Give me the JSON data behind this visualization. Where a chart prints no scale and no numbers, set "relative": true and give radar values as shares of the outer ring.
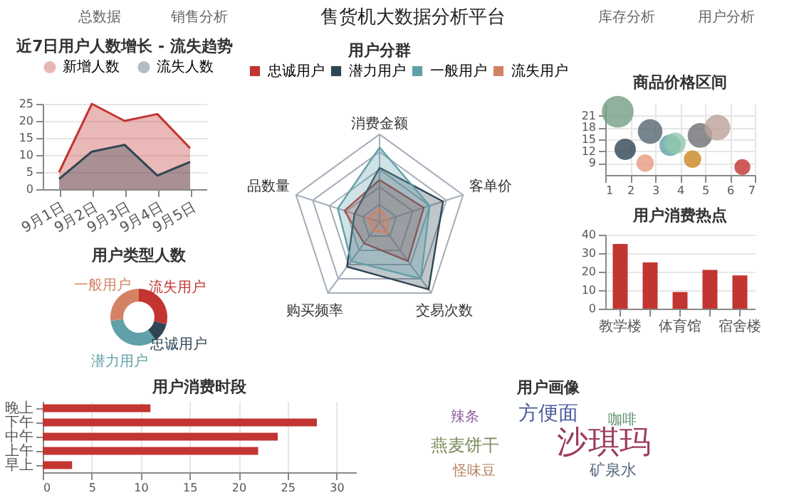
{
  "chart_data": [
    {
      "type": "other",
      "title": "售货机大数据分析平台",
      "annotations": [
        "总数据",
        "销售分析",
        "库存分析",
        "用户分析"
      ]
    },
    {
      "type": "area",
      "title": "近7日用户人数增长 - 流失趋势",
      "categories": [
        "9月1日",
        "9月2日",
        "9月3日",
        "9月4日",
        "9月5日"
      ],
      "series": [
        {
          "name": "新增人数",
          "color": "#c23531",
          "values": [
            5,
            25,
            20,
            22,
            12
          ]
        },
        {
          "name": "流失人数",
          "color": "#2f4554",
          "values": [
            3,
            11,
            13,
            4,
            8
          ]
        }
      ],
      "ylim": [
        0,
        25
      ],
      "yticks": [
        0,
        5,
        10,
        15,
        20,
        25
      ],
      "grid": "y",
      "legend": "top"
    },
    {
      "type": "donut",
      "title": "用户类型人数",
      "categories": [
        "流失用户",
        "忠诚用户",
        "潜力用户",
        "一般用户"
      ],
      "values": [
        29,
        11,
        33,
        27
      ],
      "colors": [
        "#c23531",
        "#2f4554",
        "#61a0a8",
        "#d48265"
      ]
    },
    {
      "type": "radar",
      "title": "用户分群",
      "categories": [
        "消费金额",
        "客单价",
        "交易次数",
        "购买频率",
        "品数量"
      ],
      "relative": true,
      "series": [
        {
          "name": "忠诚用户",
          "color": "#c23531",
          "values": [
            0.48,
            0.53,
            0.55,
            0.3,
            0.42
          ]
        },
        {
          "name": "潜力用户",
          "color": "#2f4554",
          "values": [
            0.62,
            0.76,
            0.95,
            0.63,
            0.3
          ]
        },
        {
          "name": "一般用户",
          "color": "#61a0a8",
          "values": [
            0.85,
            0.6,
            0.8,
            0.55,
            0.5
          ]
        },
        {
          "name": "流失用户",
          "color": "#d48265",
          "values": [
            0.15,
            0.1,
            0.15,
            0.12,
            0.15
          ]
        }
      ],
      "legend": "top"
    },
    {
      "type": "bubble",
      "title": "商品价格区间",
      "x": [
        1.5,
        1.8,
        2.6,
        2.8,
        3.6,
        3.8,
        4.5,
        4.8,
        5.5,
        6.5
      ],
      "values": [
        22,
        12.5,
        9,
        17,
        13.5,
        14,
        10,
        16,
        18,
        8
      ],
      "sizes": [
        1,
        0.45,
        0.3,
        0.6,
        0.45,
        0.45,
        0.3,
        0.6,
        0.65,
        0.25
      ],
      "colors": [
        "#749f83",
        "#2f4554",
        "#e69a7e",
        "#546570",
        "#61a0a8",
        "#91c7ae",
        "#ca8622",
        "#6e7074",
        "#bda29a",
        "#c23531"
      ],
      "xlim": [
        1,
        7
      ],
      "xticks": [
        1,
        2,
        3,
        4,
        5,
        6,
        7
      ],
      "ylim": [
        6,
        24
      ],
      "yticks": [
        9,
        12,
        15,
        18,
        21
      ],
      "grid": true
    },
    {
      "type": "bar",
      "title": "用户消费热点",
      "categories": [
        "教学楼",
        null,
        "体育馆",
        null,
        "宿舍楼"
      ],
      "values": [
        35,
        25,
        9,
        21,
        18
      ],
      "color": "#c23531",
      "ylim": [
        0,
        40
      ],
      "yticks": [
        0,
        10,
        20,
        30,
        40
      ],
      "grid": "y"
    },
    {
      "type": "bar",
      "orientation": "horizontal",
      "title": "用户消费时段",
      "categories": [
        "晚上",
        "下午",
        "中午",
        "上午",
        "早上"
      ],
      "values": [
        11,
        28,
        24,
        22,
        3
      ],
      "color": "#c23531",
      "xlim": [
        0,
        32
      ],
      "xticks": [
        0,
        5,
        10,
        15,
        20,
        25,
        30
      ],
      "grid": "x"
    },
    {
      "type": "other",
      "title": "用户画像",
      "annotations": [
        "怪味豆",
        "矿泉水",
        "燕麦饼干",
        "沙琪玛",
        "咖啡",
        "方便面",
        "辣条"
      ]
    }
  ]
}
